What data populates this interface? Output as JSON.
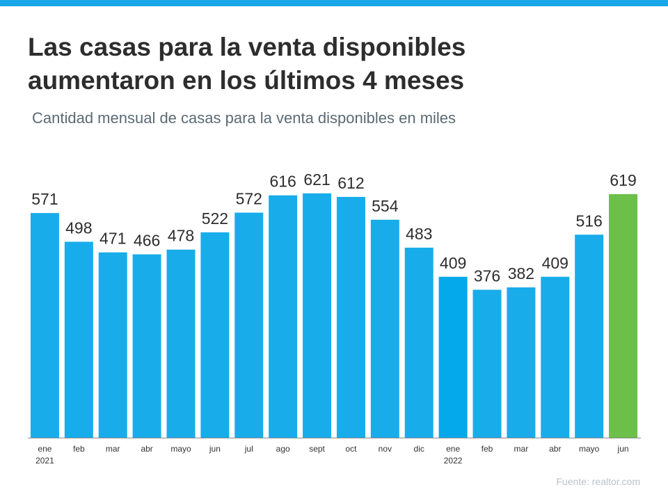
{
  "chart_data": {
    "type": "bar",
    "title": "Las casas para la venta disponibles aumentaron en los últimos 4 meses",
    "subtitle": "Cantidad mensual de casas para la venta disponibles en miles",
    "source": "Fuente:  realtor.com",
    "categories": [
      "ene\n2021",
      "feb",
      "mar",
      "abr",
      "mayo",
      "jun",
      "jul",
      "ago",
      "sept",
      "oct",
      "nov",
      "dic",
      "ene\n2022",
      "feb",
      "mar",
      "abr",
      "mayo",
      "jun"
    ],
    "values": [
      571,
      498,
      471,
      466,
      478,
      522,
      572,
      616,
      621,
      612,
      554,
      483,
      409,
      376,
      382,
      409,
      516,
      619
    ],
    "colors": [
      "#19aceb",
      "#19aceb",
      "#19aceb",
      "#19aceb",
      "#19aceb",
      "#19aceb",
      "#19aceb",
      "#19aceb",
      "#19aceb",
      "#19aceb",
      "#19aceb",
      "#19aceb",
      "#03a9ea",
      "#19aceb",
      "#19aceb",
      "#19aceb",
      "#19aceb",
      "#6cc04a"
    ],
    "ylim": [
      0,
      700
    ]
  }
}
